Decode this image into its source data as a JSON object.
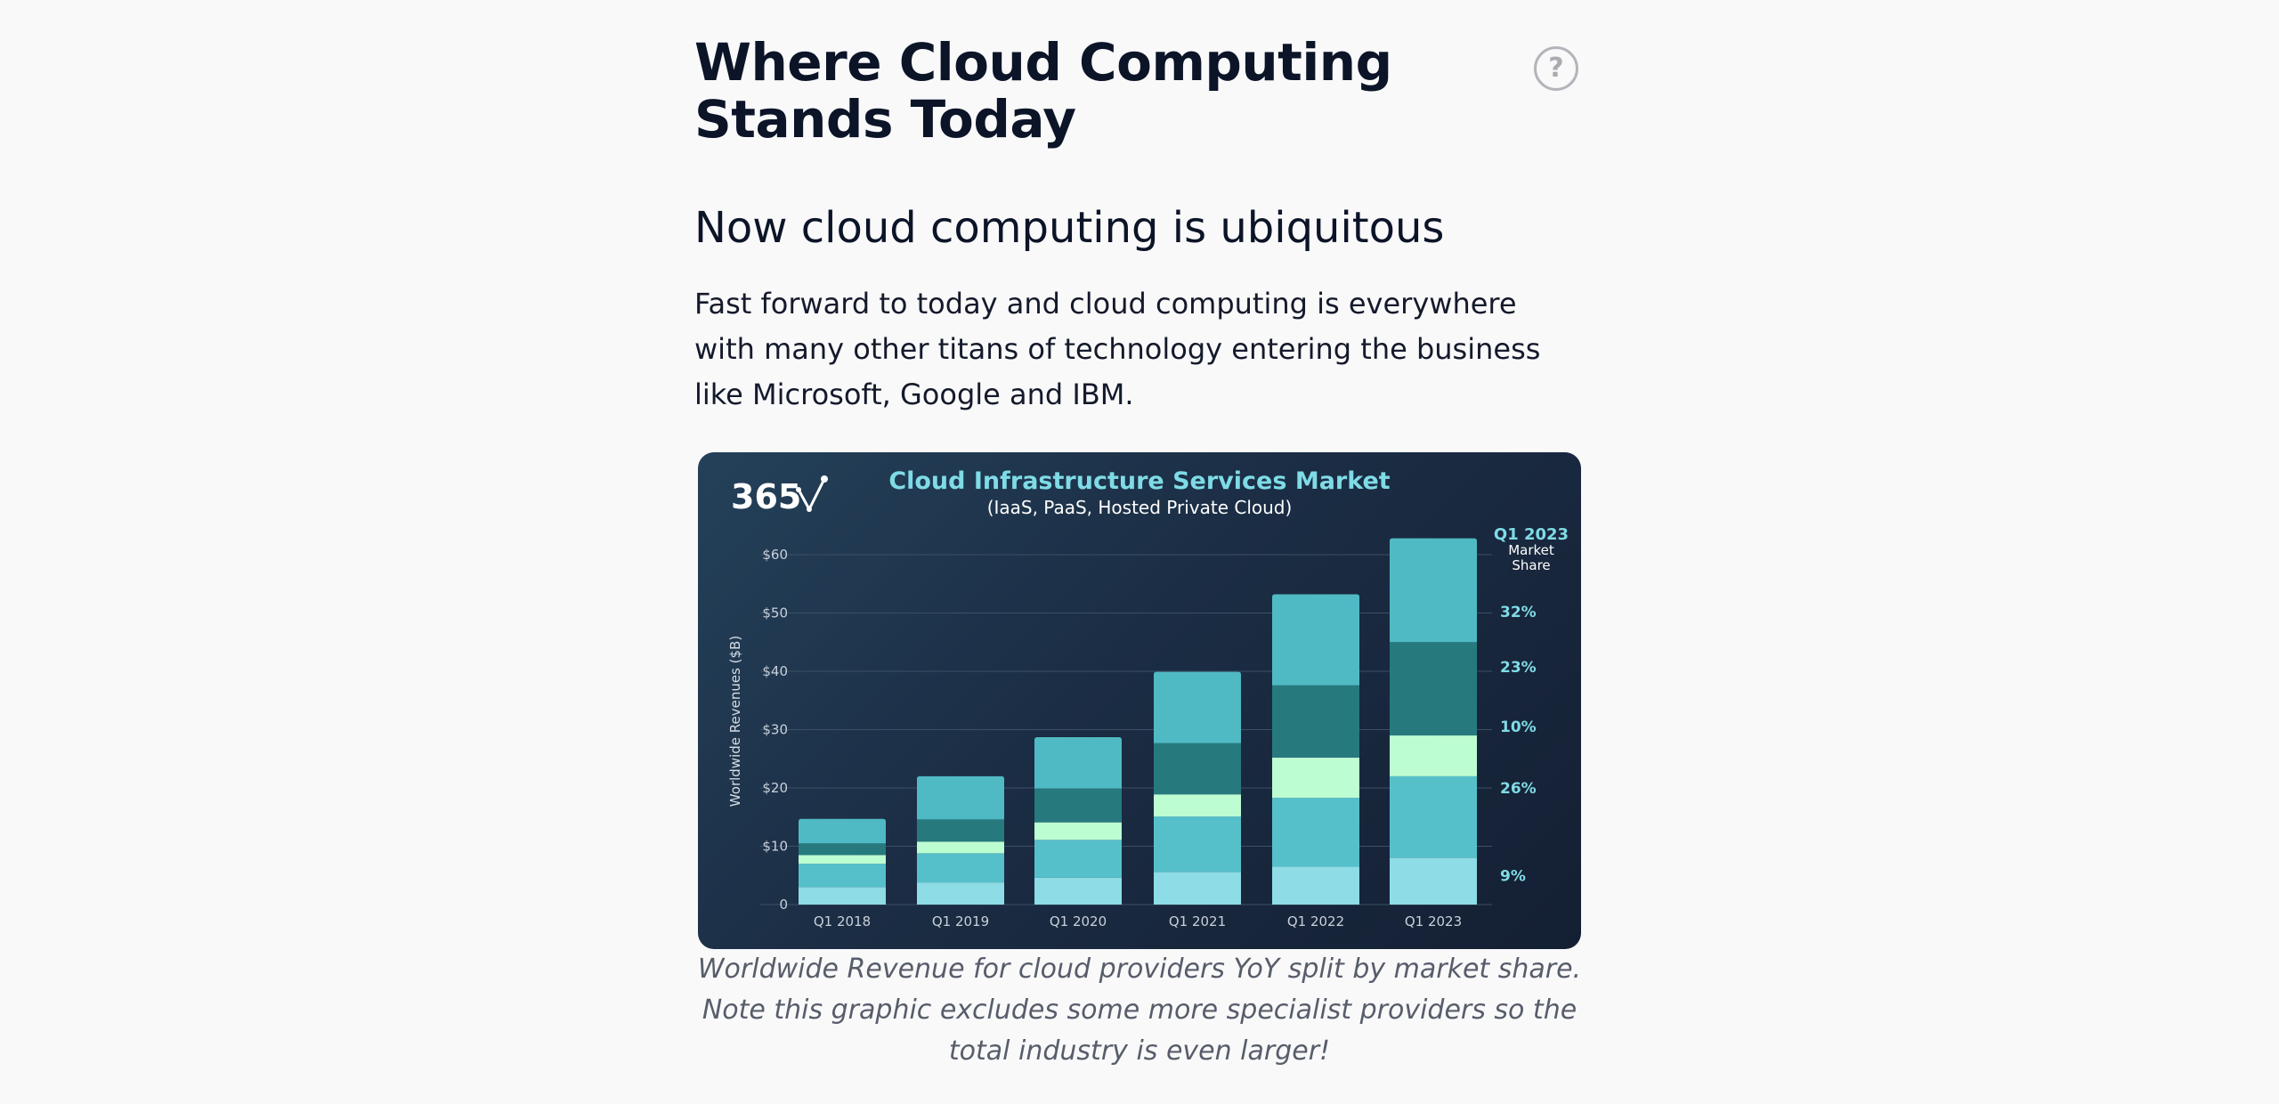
{
  "article": {
    "title": "Where Cloud Computing Stands Today",
    "help_icon": "question-circle-icon",
    "help_glyph": "?",
    "subtitle": "Now cloud computing is ubiquitous",
    "paragraph": "Fast forward to today and cloud computing is everywhere with many other titans of technology entering the business like Microsoft, Google and IBM.",
    "caption": "Worldwide Revenue for cloud providers YoY split by market share. Note this graphic excludes some more specialist providers so the total industry is even larger!"
  },
  "figure": {
    "logo_text": "365",
    "logo_icon": "365-logo-icon"
  },
  "chart_data": {
    "type": "bar",
    "stacked": true,
    "title": "Cloud Infrastructure Services Market",
    "subtitle": "(IaaS, PaaS, Hosted Private Cloud)",
    "ylabel": "Worldwide Revenues ($B)",
    "ylim": [
      0,
      60
    ],
    "yticks": [
      0,
      10,
      20,
      30,
      40,
      50,
      60
    ],
    "ytick_labels": [
      "0",
      "$10",
      "$20",
      "$30",
      "$40",
      "$50",
      "$60"
    ],
    "grid": true,
    "categories": [
      "Q1 2018",
      "Q1 2019",
      "Q1 2020",
      "Q1 2021",
      "Q1 2022",
      "Q1 2023"
    ],
    "series": [
      {
        "color": "#8ddce6",
        "values": [
          3.0,
          3.8,
          4.6,
          5.6,
          6.5,
          8.0
        ]
      },
      {
        "color": "#56c0ca",
        "values": [
          4.0,
          5.0,
          6.5,
          9.5,
          11.8,
          14.0
        ]
      },
      {
        "color": "#bdfdd2",
        "values": [
          1.5,
          2.0,
          3.0,
          3.8,
          6.9,
          7.0
        ]
      },
      {
        "color": "#267a7e",
        "values": [
          2.0,
          3.8,
          5.8,
          8.8,
          12.4,
          16.0
        ]
      },
      {
        "color": "#50bac4",
        "values": [
          4.2,
          7.4,
          8.8,
          12.2,
          15.6,
          17.8
        ]
      }
    ],
    "side_header": [
      "Q1 2023",
      "Market",
      "Share"
    ],
    "market_share": [
      {
        "label": "32%",
        "y": 50.2
      },
      {
        "label": "23%",
        "y": 40.8
      },
      {
        "label": "10%",
        "y": 30.5
      },
      {
        "label": "26%",
        "y": 20.0
      },
      {
        "label": "9%",
        "y": 5.0
      }
    ]
  }
}
